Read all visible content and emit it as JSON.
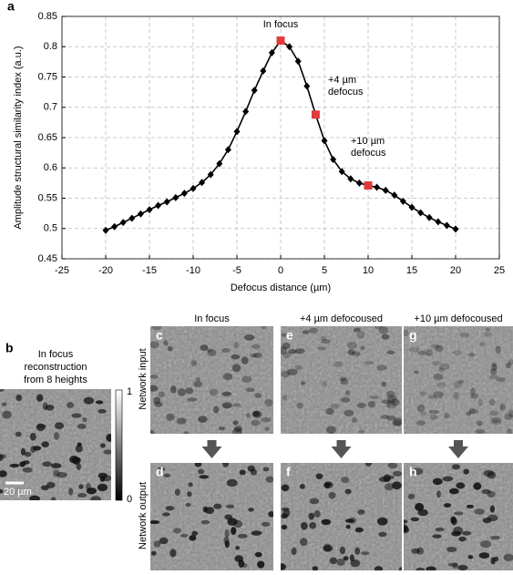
{
  "chart_data": {
    "type": "line",
    "panel": "a",
    "x_label": "Defocus distance (µm)",
    "y_label": "Amplitude structural similarity index (a.u.)",
    "x": [
      -20,
      -19,
      -18,
      -17,
      -16,
      -15,
      -14,
      -13,
      -12,
      -11,
      -10,
      -9,
      -8,
      -7,
      -6,
      -5,
      -4,
      -3,
      -2,
      -1,
      0,
      1,
      2,
      3,
      4,
      5,
      6,
      7,
      8,
      9,
      10,
      11,
      12,
      13,
      14,
      15,
      16,
      17,
      18,
      19,
      20
    ],
    "values": [
      0.497,
      0.503,
      0.51,
      0.517,
      0.524,
      0.531,
      0.538,
      0.544,
      0.551,
      0.558,
      0.566,
      0.576,
      0.589,
      0.607,
      0.63,
      0.66,
      0.693,
      0.728,
      0.76,
      0.79,
      0.81,
      0.8,
      0.776,
      0.735,
      0.688,
      0.645,
      0.614,
      0.594,
      0.582,
      0.575,
      0.571,
      0.568,
      0.563,
      0.555,
      0.545,
      0.535,
      0.526,
      0.518,
      0.511,
      0.505,
      0.499
    ],
    "color": "#000000",
    "highlight": {
      "x": [
        0,
        4,
        10
      ],
      "color": "#e03a3a"
    },
    "annotations": [
      {
        "lines": [
          "In focus"
        ]
      },
      {
        "lines": [
          "+4 µm",
          "defocus"
        ]
      },
      {
        "lines": [
          "+10 µm",
          "defocus"
        ]
      }
    ],
    "xlim": [
      -25,
      25
    ],
    "xticks": [
      -25,
      -20,
      -15,
      -10,
      -5,
      0,
      5,
      10,
      15,
      20,
      25
    ],
    "ylim": [
      0.45,
      0.85
    ],
    "yticks": [
      0.45,
      0.5,
      0.55,
      0.6,
      0.65,
      0.7,
      0.75,
      0.8,
      0.85
    ],
    "grid": true
  },
  "panel_b": {
    "label": "b",
    "caption": [
      "In focus",
      "reconstruction",
      "from 8 heights"
    ],
    "colorbar": {
      "max": "1",
      "min": "0"
    },
    "scale_bar": "20 µm"
  },
  "columns": [
    "In focus",
    "+4 µm defocoused",
    "+10 µm defocoused"
  ],
  "rows": [
    "Network input",
    "Network output"
  ],
  "panel_labels": {
    "input": [
      "c",
      "e",
      "g"
    ],
    "output": [
      "d",
      "f",
      "h"
    ]
  }
}
